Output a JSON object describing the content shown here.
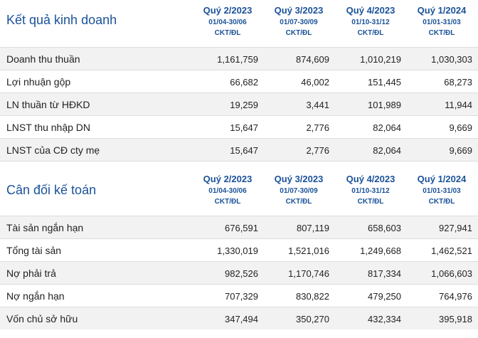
{
  "income": {
    "title": "Kết quả kinh doanh",
    "quarters": [
      {
        "label": "Quý 2/2023",
        "range": "01/04-30/06",
        "audit": "CKT/ĐL"
      },
      {
        "label": "Quý 3/2023",
        "range": "01/07-30/09",
        "audit": "CKT/ĐL"
      },
      {
        "label": "Quý 4/2023",
        "range": "01/10-31/12",
        "audit": "CKT/ĐL"
      },
      {
        "label": "Quý 1/2024",
        "range": "01/01-31/03",
        "audit": "CKT/ĐL"
      }
    ],
    "rows": [
      {
        "label": "Doanh thu thuần",
        "values": [
          "1,161,759",
          "874,609",
          "1,010,219",
          "1,030,303"
        ]
      },
      {
        "label": "Lợi nhuận gộp",
        "values": [
          "66,682",
          "46,002",
          "151,445",
          "68,273"
        ]
      },
      {
        "label": "LN thuần từ HĐKD",
        "values": [
          "19,259",
          "3,441",
          "101,989",
          "11,944"
        ]
      },
      {
        "label": "LNST thu nhập DN",
        "values": [
          "15,647",
          "2,776",
          "82,064",
          "9,669"
        ]
      },
      {
        "label": "LNST của CĐ cty mẹ",
        "values": [
          "15,647",
          "2,776",
          "82,064",
          "9,669"
        ]
      }
    ]
  },
  "balance": {
    "title": "Cân đối kế toán",
    "quarters": [
      {
        "label": "Quý 2/2023",
        "range": "01/04-30/06",
        "audit": "CKT/ĐL"
      },
      {
        "label": "Quý 3/2023",
        "range": "01/07-30/09",
        "audit": "CKT/ĐL"
      },
      {
        "label": "Quý 4/2023",
        "range": "01/10-31/12",
        "audit": "CKT/ĐL"
      },
      {
        "label": "Quý 1/2024",
        "range": "01/01-31/03",
        "audit": "CKT/ĐL"
      }
    ],
    "rows": [
      {
        "label": "Tài sản ngắn hạn",
        "values": [
          "676,591",
          "807,119",
          "658,603",
          "927,941"
        ]
      },
      {
        "label": "Tổng tài sản",
        "values": [
          "1,330,019",
          "1,521,016",
          "1,249,668",
          "1,462,521"
        ]
      },
      {
        "label": "Nợ phải trả",
        "values": [
          "982,526",
          "1,170,746",
          "817,334",
          "1,066,603"
        ]
      },
      {
        "label": "Nợ ngắn hạn",
        "values": [
          "707,329",
          "830,822",
          "479,250",
          "764,976"
        ]
      },
      {
        "label": "Vốn chủ sở hữu",
        "values": [
          "347,494",
          "350,270",
          "432,334",
          "395,918"
        ]
      }
    ]
  }
}
